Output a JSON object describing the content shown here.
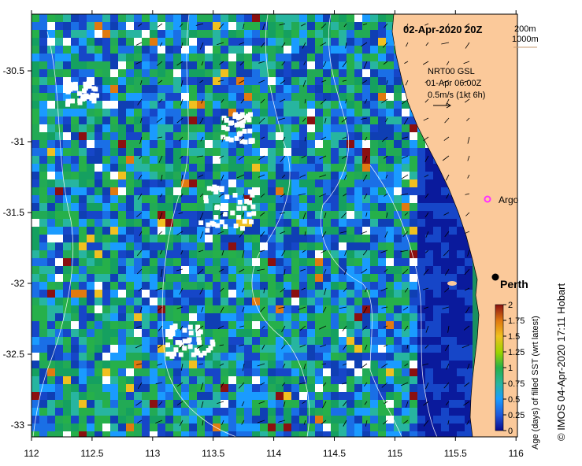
{
  "map": {
    "title": "02-Apr-2020 20Z",
    "depth_contours": [
      "200m",
      "1000m"
    ],
    "current_label": {
      "line1": "NRT00 GSL",
      "line2": "01-Apr 06:00Z",
      "line3": "0.5m/s (1kt 6h)"
    },
    "places": [
      {
        "name": "Argo",
        "lon": 115.85,
        "lat": -31.42
      },
      {
        "name": "Perth",
        "lon": 115.86,
        "lat": -31.95
      }
    ],
    "lon_ticks": [
      "112",
      "112.5",
      "113",
      "113.5",
      "114",
      "114.5",
      "115",
      "115.5",
      "116"
    ],
    "lat_ticks": [
      "-30.5",
      "-31",
      "-31.5",
      "-32",
      "-32.5",
      "-33"
    ],
    "colors": {
      "land": "#fbc99a",
      "argo": "#ff33ff",
      "contour": "#ffffff"
    }
  },
  "colorbar": {
    "label": "Age (days) of filled SST (wrt latest)",
    "ticks": [
      "2",
      "1.75",
      "1.5",
      "1.25",
      "1",
      "0.75",
      "0.5",
      "0.25",
      "0"
    ],
    "colors": [
      "#0a0a8c",
      "#1f55d9",
      "#1a9bff",
      "#27b5a0",
      "#26b04a",
      "#9bd400",
      "#f0c020",
      "#e07a10",
      "#8b1010"
    ]
  },
  "credit": "© IMOS 04-Apr-2020 17:11 Hobart"
}
